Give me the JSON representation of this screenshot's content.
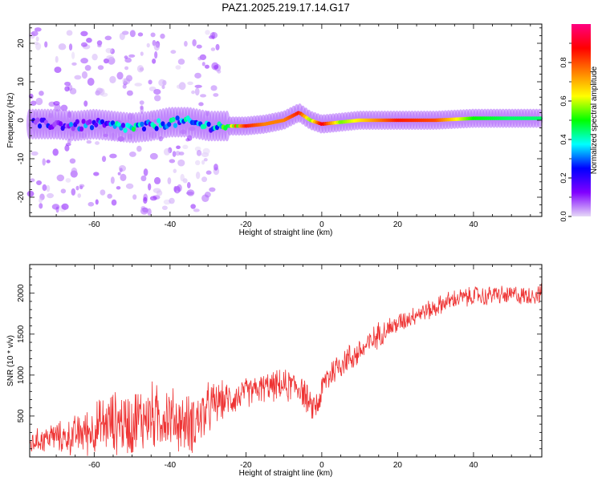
{
  "title": "PAZ1.2025.219.17.14.G17",
  "chart_data": [
    {
      "type": "heatmap",
      "xlabel": "Height of straight line (km)",
      "ylabel": "Frequency (Hz)",
      "xlim": [
        -77,
        58
      ],
      "ylim": [
        -25,
        25
      ],
      "xticks": [
        -60,
        -40,
        -20,
        0,
        20,
        40
      ],
      "yticks": [
        -20,
        -10,
        0,
        10,
        20
      ],
      "colorbar": {
        "label": "Normalized spectral amplitude",
        "range": [
          0,
          1
        ],
        "ticks": [
          "0.0",
          "0.2",
          "0.4",
          "0.6",
          "0.8"
        ],
        "colors": [
          "#e6d9f7",
          "#8000ff",
          "#0000ff",
          "#00ffff",
          "#00ff00",
          "#ffff00",
          "#ff8000",
          "#ff0000",
          "#ff0080"
        ]
      },
      "ridge": {
        "x": [
          -75,
          -70,
          -65,
          -60,
          -55,
          -50,
          -45,
          -40,
          -35,
          -30,
          -25,
          -20,
          -15,
          -10,
          -6,
          -3,
          0,
          5,
          10,
          20,
          30,
          40,
          50,
          58
        ],
        "frequency": [
          -1.0,
          -1.0,
          -1.5,
          -1.0,
          -1.5,
          -2.0,
          -1.5,
          -0.5,
          -0.5,
          -1.5,
          -1.5,
          -1.5,
          -1.0,
          0.0,
          2.0,
          0.0,
          -1.0,
          -0.5,
          0.0,
          0.0,
          0.0,
          0.5,
          0.5,
          0.5
        ],
        "amplitude": [
          0.1,
          0.15,
          0.2,
          0.25,
          0.3,
          0.35,
          0.3,
          0.35,
          0.3,
          0.3,
          0.45,
          0.85,
          0.75,
          0.75,
          0.85,
          0.55,
          0.9,
          0.55,
          0.65,
          0.85,
          0.8,
          0.5,
          0.45,
          0.45
        ]
      }
    },
    {
      "type": "line",
      "xlabel": "Height of straight line (km)",
      "ylabel": "SNR (10 * v/v)",
      "xlim": [
        -77,
        58
      ],
      "ylim": [
        0,
        2350
      ],
      "xticks": [
        -60,
        -40,
        -20,
        0,
        20,
        40
      ],
      "yticks": [
        500,
        1000,
        1500,
        2000
      ],
      "color": "#ee3333",
      "series": [
        {
          "x": [
            -77,
            -75,
            -73,
            -71,
            -69,
            -67,
            -65,
            -63,
            -61,
            -59,
            -57,
            -55,
            -53,
            -51,
            -49,
            -47,
            -45,
            -43,
            -41,
            -39,
            -37,
            -35,
            -33,
            -31,
            -29,
            -27,
            -25,
            -23,
            -21,
            -19,
            -17,
            -15,
            -13,
            -11,
            -9,
            -7,
            -5,
            -3,
            -1,
            1,
            3,
            5,
            7,
            9,
            11,
            13,
            15,
            17,
            19,
            21,
            23,
            25,
            27,
            29,
            31,
            33,
            35,
            37,
            39,
            41,
            43,
            45,
            47,
            49,
            51,
            53,
            55,
            57
          ],
          "y": [
            150,
            200,
            220,
            260,
            240,
            230,
            270,
            300,
            320,
            360,
            400,
            420,
            430,
            400,
            450,
            480,
            500,
            470,
            520,
            450,
            420,
            400,
            450,
            520,
            620,
            680,
            700,
            720,
            760,
            800,
            820,
            850,
            860,
            870,
            860,
            880,
            820,
            600,
            650,
            950,
            1050,
            1150,
            1200,
            1250,
            1320,
            1400,
            1500,
            1560,
            1600,
            1650,
            1700,
            1750,
            1780,
            1800,
            1850,
            1900,
            1920,
            1950,
            1950,
            1980,
            1950,
            1990,
            1980,
            1960,
            1990,
            1960,
            1980,
            1990
          ],
          "noise": [
            120,
            120,
            140,
            150,
            160,
            180,
            200,
            220,
            250,
            280,
            300,
            320,
            330,
            340,
            350,
            350,
            350,
            340,
            330,
            320,
            300,
            300,
            320,
            300,
            250,
            200,
            180,
            170,
            160,
            150,
            150,
            150,
            150,
            160,
            170,
            170,
            170,
            150,
            150,
            170,
            170,
            160,
            150,
            150,
            140,
            140,
            130,
            120,
            110,
            110,
            100,
            100,
            100,
            100,
            100,
            100,
            100,
            100,
            100,
            100,
            100,
            100,
            100,
            100,
            100,
            100,
            100,
            100
          ]
        }
      ]
    }
  ]
}
